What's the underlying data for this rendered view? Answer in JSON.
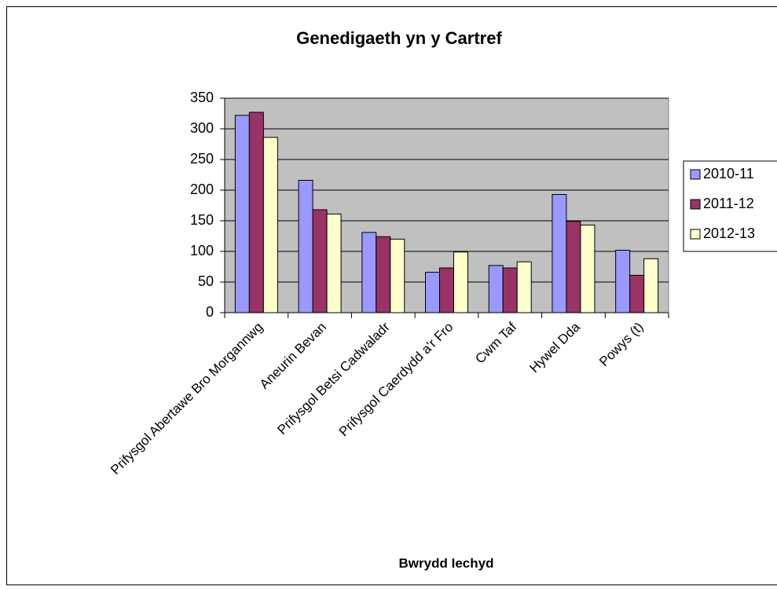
{
  "chart_data": {
    "type": "bar",
    "title": "Genedigaeth yn y Cartref",
    "x_label": "Bwrydd Iechyd",
    "categories": [
      "Prifysgol Abertawe Bro Morgannwg",
      "Aneurin Bevan",
      "Prifysgol Betsi Cadwaladr",
      "Prifysgol Caerdydd a'r Fro",
      "Cwm Taf",
      "Hywel Dda",
      "Powys (t)"
    ],
    "series": [
      {
        "name": "2010-11",
        "color": "#9999ff",
        "values": [
          322,
          216,
          131,
          66,
          77,
          193,
          102
        ]
      },
      {
        "name": "2011-12",
        "color": "#993366",
        "values": [
          327,
          168,
          124,
          73,
          73,
          149,
          61
        ]
      },
      {
        "name": "2012-13",
        "color": "#ffffcc",
        "values": [
          286,
          161,
          120,
          99,
          83,
          143,
          88
        ]
      }
    ],
    "ylim": [
      0,
      350
    ],
    "yticks": [
      0,
      50,
      100,
      150,
      200,
      250,
      300,
      350
    ],
    "grid": true,
    "legend": "right"
  }
}
